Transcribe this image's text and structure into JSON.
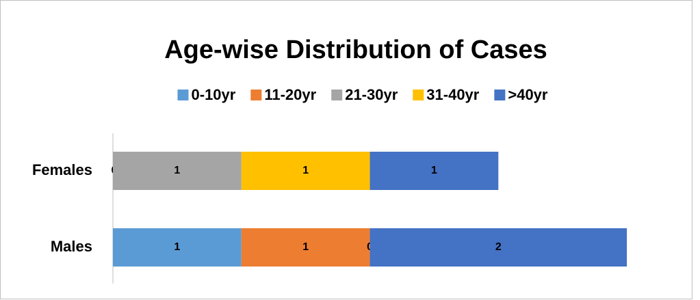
{
  "chart_data": {
    "type": "stacked_bar_horizontal",
    "title": "Age-wise Distribution of Cases",
    "categories": [
      "Females",
      "Males"
    ],
    "series": [
      {
        "name": "0-10yr",
        "color": "#5b9bd5",
        "values": [
          0,
          1
        ]
      },
      {
        "name": "11-20yr",
        "color": "#ed7d31",
        "values": [
          null,
          1
        ]
      },
      {
        "name": "21-30yr",
        "color": "#a5a5a5",
        "values": [
          1,
          0
        ]
      },
      {
        "name": "31-40yr",
        "color": "#ffc000",
        "values": [
          1,
          null
        ]
      },
      {
        "name": ">40yr",
        "color": "#4472c4",
        "values": [
          1,
          2
        ]
      }
    ],
    "xlim": [
      0,
      4.5
    ],
    "legend": "top"
  }
}
